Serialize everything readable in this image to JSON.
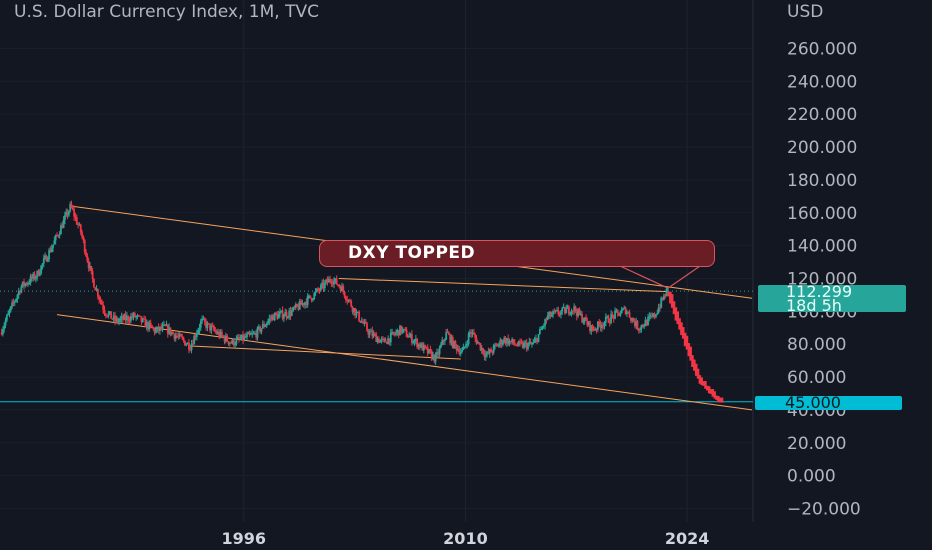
{
  "header": {
    "title": "U.S. Dollar Currency Index, 1M, TVC"
  },
  "currency": "USD",
  "price_tag": {
    "price": "112.299",
    "countdown": "18d 5h",
    "color": "#26a69a"
  },
  "level_tag": {
    "price": "45.000",
    "color": "#00bcd4"
  },
  "annotation": {
    "text": "DXY TOPPED",
    "fill": "#6b1d25",
    "border": "#d9545e"
  },
  "colors": {
    "background": "#131722",
    "up": "#26a69a",
    "down": "#f23645",
    "trendline": "#f7a35c",
    "level_line": "#00bcd4"
  },
  "chart_data": {
    "type": "candlestick",
    "symbol": "U.S. Dollar Currency Index",
    "interval": "1M",
    "source": "TVC",
    "ylim": [
      -20,
      270
    ],
    "y_ticks": [
      260,
      240,
      220,
      200,
      180,
      160,
      140,
      120,
      100,
      80,
      60,
      40,
      20,
      0,
      -20
    ],
    "y_tick_labels": [
      "260.000",
      "240.000",
      "220.000",
      "200.000",
      "180.000",
      "160.000",
      "140.000",
      "120.000",
      "100.000",
      "80.000",
      "60.000",
      "40.000",
      "20.000",
      "0.000",
      "−20.000"
    ],
    "x_range": [
      1980.6,
      2028.1
    ],
    "x_ticks": [
      1996,
      2010,
      2024
    ],
    "x_tick_labels": [
      "1996",
      "2010",
      "2024"
    ],
    "last_price": 112.299,
    "horizontal_level": 45,
    "price_path": [
      [
        1980.7,
        87
      ],
      [
        1982.0,
        115
      ],
      [
        1983.0,
        122
      ],
      [
        1984.0,
        140
      ],
      [
        1985.15,
        164
      ],
      [
        1985.8,
        148
      ],
      [
        1986.5,
        120
      ],
      [
        1987.3,
        100
      ],
      [
        1988.0,
        94
      ],
      [
        1989.2,
        97
      ],
      [
        1990.5,
        88
      ],
      [
        1991.1,
        90
      ],
      [
        1992.7,
        79
      ],
      [
        1993.4,
        94
      ],
      [
        1994.5,
        86
      ],
      [
        1995.3,
        81
      ],
      [
        1996.8,
        86
      ],
      [
        1997.9,
        97
      ],
      [
        1999.0,
        99
      ],
      [
        2000.5,
        110
      ],
      [
        2001.6,
        120
      ],
      [
        2002.2,
        115
      ],
      [
        2003.1,
        100
      ],
      [
        2004.0,
        87
      ],
      [
        2004.9,
        81
      ],
      [
        2006.0,
        89
      ],
      [
        2007.0,
        81
      ],
      [
        2008.2,
        71
      ],
      [
        2008.9,
        87
      ],
      [
        2009.3,
        80
      ],
      [
        2009.9,
        75
      ],
      [
        2010.4,
        88
      ],
      [
        2011.4,
        73
      ],
      [
        2012.5,
        83
      ],
      [
        2013.5,
        79
      ],
      [
        2014.4,
        80
      ],
      [
        2015.3,
        97
      ],
      [
        2016.9,
        102
      ],
      [
        2018.1,
        89
      ],
      [
        2019.4,
        97
      ],
      [
        2020.2,
        101
      ],
      [
        2021.0,
        90
      ],
      [
        2022.0,
        97
      ],
      [
        2022.8,
        112.3
      ]
    ],
    "projection_path": [
      [
        2022.8,
        112
      ],
      [
        2023.3,
        97
      ],
      [
        2023.8,
        84
      ],
      [
        2024.3,
        70
      ],
      [
        2024.8,
        58
      ],
      [
        2025.6,
        50
      ],
      [
        2026.2,
        45
      ]
    ],
    "trendlines": [
      {
        "from": [
          1985.15,
          164
        ],
        "to": [
          2028.1,
          108
        ]
      },
      {
        "from": [
          1984.2,
          98
        ],
        "to": [
          2028.1,
          40
        ]
      },
      {
        "from": [
          2002.0,
          120
        ],
        "to": [
          2022.8,
          112
        ]
      },
      {
        "from": [
          1992.5,
          79
        ],
        "to": [
          2009.7,
          71
        ]
      }
    ]
  }
}
